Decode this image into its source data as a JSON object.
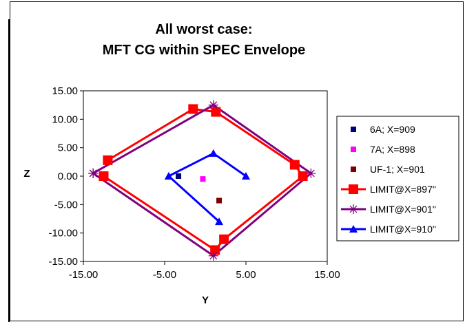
{
  "chart_data": {
    "type": "scatter",
    "title": [
      "All worst case:",
      "MFT CG within SPEC Envelope"
    ],
    "xlabel": "Y",
    "ylabel": "Z",
    "xlim": [
      -15,
      15
    ],
    "ylim": [
      -15,
      15
    ],
    "xticks": [
      -15,
      -5,
      5,
      15
    ],
    "xtick_labels": [
      "-15.00",
      "-5.00",
      "5.00",
      "15.00"
    ],
    "yticks": [
      15,
      10,
      5,
      0,
      -5,
      -10,
      -15
    ],
    "ytick_labels": [
      "15.00",
      "10.00",
      "5.00",
      "0.00",
      "-5.00",
      "-10.00",
      "-15.00"
    ],
    "grid": false,
    "legend_position": "right",
    "series": [
      {
        "name": "6A; X=909",
        "color": "#000080",
        "marker": "square",
        "line": false,
        "points": [
          [
            -3.3,
            0
          ]
        ]
      },
      {
        "name": "7A; X=898",
        "color": "#ff00ff",
        "marker": "square",
        "line": false,
        "points": [
          [
            -0.3,
            -0.5
          ]
        ]
      },
      {
        "name": "UF-1; X=901",
        "color": "#800000",
        "marker": "square",
        "line": false,
        "points": [
          [
            1.7,
            -4.3
          ]
        ]
      },
      {
        "name": "LIMIT@X=897\"",
        "color": "#ff0000",
        "marker": "bigsquare",
        "line": true,
        "points": [
          [
            -12,
            2.8
          ],
          [
            -1.5,
            11.8
          ],
          [
            1.3,
            11.3
          ],
          [
            11,
            2
          ],
          [
            12,
            0
          ],
          [
            2.3,
            -11.1
          ],
          [
            1.2,
            -13
          ],
          [
            -12.5,
            0
          ]
        ]
      },
      {
        "name": "LIMIT@X=901\"",
        "color": "#800080",
        "marker": "star",
        "line": true,
        "points": [
          [
            -13.8,
            0.5
          ],
          [
            1,
            12.5
          ],
          [
            13,
            0.5
          ],
          [
            1,
            -14
          ],
          [
            -13.8,
            0.5
          ]
        ]
      },
      {
        "name": "LIMIT@X=910\"",
        "color": "#0000ff",
        "marker": "triangle",
        "line": true,
        "points": [
          [
            -4.5,
            0
          ],
          [
            1,
            4
          ],
          [
            5,
            0
          ]
        ]
      },
      {
        "name": "",
        "color": "#0000ff",
        "marker": "triangle",
        "line": true,
        "legend": false,
        "points": [
          [
            -4.5,
            0
          ],
          [
            1.7,
            -8
          ]
        ]
      }
    ]
  }
}
